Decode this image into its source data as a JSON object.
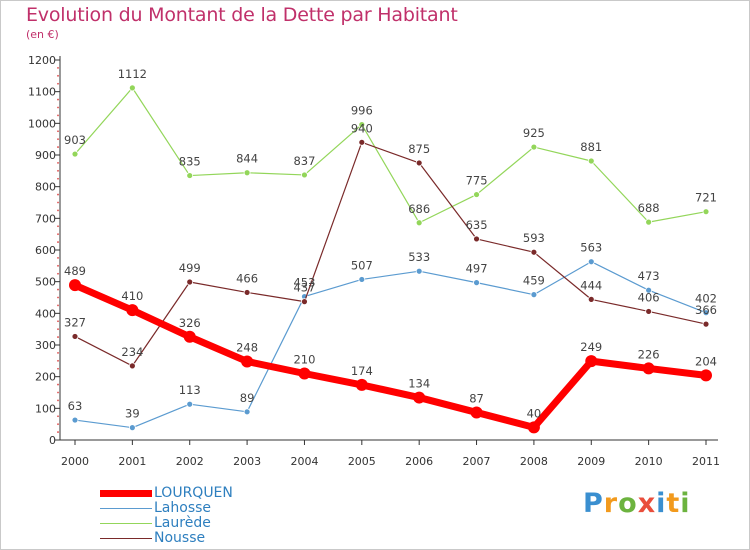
{
  "title": "Evolution du Montant de la Dette par Habitant",
  "subtitle": "(en €)",
  "logo": {
    "letters": [
      "P",
      "r",
      "o",
      "x",
      "i",
      "t",
      "i"
    ],
    "colors": [
      "#3a8fd0",
      "#f29a1d",
      "#6cb33f",
      "#e94e3c",
      "#3a8fd0",
      "#f29a1d",
      "#6cb33f"
    ]
  },
  "chart_data": {
    "type": "line",
    "title": "Evolution du Montant de la Dette par Habitant",
    "subtitle": "(en €)",
    "x": [
      "2000",
      "2001",
      "2002",
      "2003",
      "2004",
      "2005",
      "2006",
      "2007",
      "2008",
      "2009",
      "2010",
      "2011"
    ],
    "ylim": [
      0,
      1200
    ],
    "yticks": [
      0,
      100,
      200,
      300,
      400,
      500,
      600,
      700,
      800,
      900,
      1000,
      1100,
      1200
    ],
    "grid": false,
    "legend": "bottom-left",
    "series": [
      {
        "name": "LOURQUEN",
        "color": "#ff0000",
        "values": [
          489,
          410,
          326,
          248,
          210,
          174,
          134,
          87,
          40,
          249,
          226,
          204
        ]
      },
      {
        "name": "Lahosse",
        "color": "#5b9bd0",
        "values": [
          63,
          39,
          113,
          89,
          453,
          507,
          533,
          497,
          459,
          563,
          473,
          402
        ]
      },
      {
        "name": "Laurède",
        "color": "#93d65a",
        "values": [
          903,
          1112,
          835,
          844,
          837,
          996,
          686,
          775,
          925,
          881,
          688,
          721
        ]
      },
      {
        "name": "Nousse",
        "color": "#7a2a2a",
        "values": [
          327,
          234,
          499,
          466,
          437,
          940,
          875,
          635,
          593,
          444,
          406,
          366
        ]
      }
    ]
  }
}
